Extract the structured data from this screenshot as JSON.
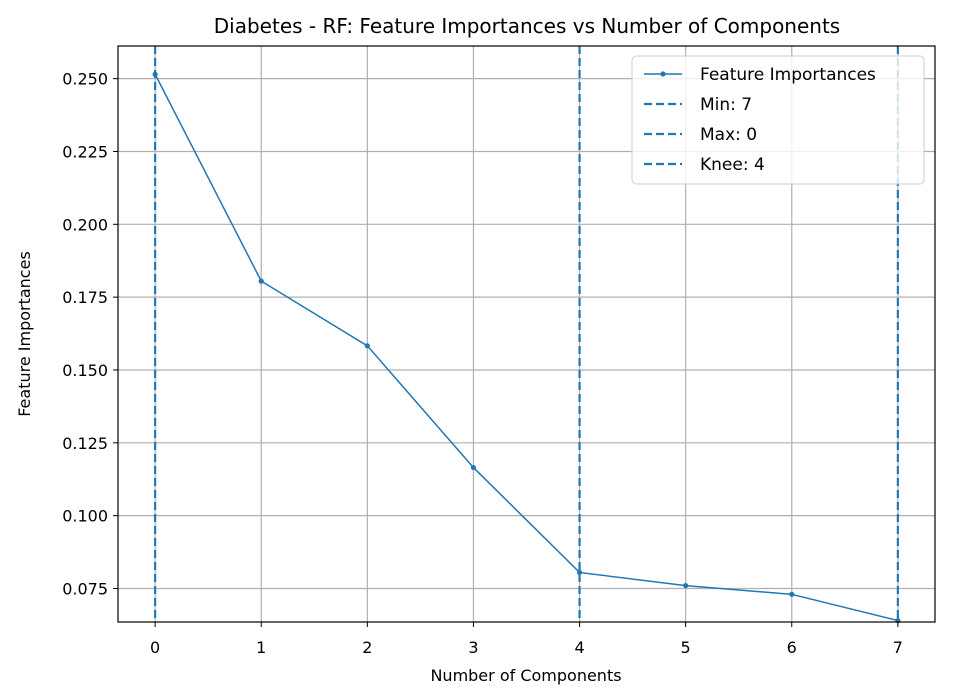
{
  "chart_data": {
    "type": "line",
    "title": "Diabetes - RF: Feature Importances vs Number of Components",
    "xlabel": "Number of Components",
    "ylabel": "Feature Importances",
    "x": [
      0,
      1,
      2,
      3,
      4,
      5,
      6,
      7
    ],
    "xlim": [
      -0.35,
      7.35
    ],
    "ylim": [
      0.0635,
      0.2612
    ],
    "xticks": [
      "0",
      "1",
      "2",
      "3",
      "4",
      "5",
      "6",
      "7"
    ],
    "yticks": [
      "0.075",
      "0.100",
      "0.125",
      "0.150",
      "0.175",
      "0.200",
      "0.225",
      "0.250"
    ],
    "grid": true,
    "legend_position": "top-right",
    "series": [
      {
        "name": "Feature Importances",
        "values": [
          0.2515,
          0.1805,
          0.1583,
          0.1165,
          0.0805,
          0.076,
          0.073,
          0.064
        ],
        "color": "#1f77b4",
        "style": "solid-with-markers"
      }
    ],
    "vlines": [
      {
        "label": "Min: 7",
        "x": 7,
        "color": "#1f77b4",
        "style": "dashed"
      },
      {
        "label": "Max: 0",
        "x": 0,
        "color": "#1f77b4",
        "style": "dashed"
      },
      {
        "label": "Knee: 4",
        "x": 4,
        "color": "#1f77b4",
        "style": "dashed"
      }
    ]
  }
}
